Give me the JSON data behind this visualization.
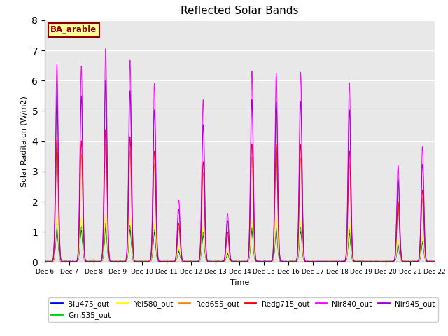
{
  "title": "Reflected Solar Bands",
  "xlabel": "Time",
  "ylabel": "Solar Raditaion (W/m2)",
  "ylim": [
    0,
    8.0
  ],
  "yticks": [
    0.0,
    1.0,
    2.0,
    3.0,
    4.0,
    5.0,
    6.0,
    7.0,
    8.0
  ],
  "background_color": "#e8e8e8",
  "annotation_text": "BA_arable",
  "annotation_bg": "#ffff99",
  "annotation_border": "#8b0000",
  "annotation_text_color": "#8b0000",
  "series_names": [
    "Blu475_out",
    "Grn535_out",
    "Yel580_out",
    "Red655_out",
    "Redg715_out",
    "Nir840_out",
    "Nir945_out"
  ],
  "series_colors": [
    "#0000ff",
    "#00cc00",
    "#ffff00",
    "#ff8800",
    "#ff0000",
    "#ff00ff",
    "#9900cc"
  ],
  "series_scales": [
    0.16,
    0.18,
    0.22,
    0.55,
    0.62,
    1.0,
    0.85
  ],
  "n_days": 16,
  "start_day": 6,
  "peak_vals": {
    "6": 6.55,
    "7": 6.45,
    "8": 7.05,
    "9": 6.65,
    "10": 5.9,
    "11": 2.05,
    "12": 5.35,
    "13": 1.6,
    "14": 6.3,
    "15": 6.25,
    "16": 6.25,
    "17": 0.0,
    "18": 5.9,
    "19": 0.0,
    "20": 3.2,
    "21": 3.8
  }
}
